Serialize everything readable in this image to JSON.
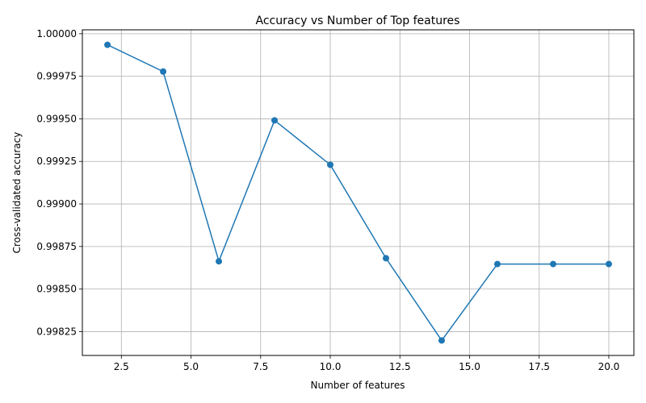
{
  "chart_data": {
    "type": "line",
    "title": "Accuracy vs Number of Top features",
    "xlabel": "Number of features",
    "ylabel": "Cross-validated accuracy",
    "xlim": [
      1.1,
      20.9
    ],
    "ylim": [
      0.99811,
      1.000023
    ],
    "grid": true,
    "xticks": [
      2.5,
      5.0,
      7.5,
      10.0,
      12.5,
      15.0,
      17.5,
      20.0
    ],
    "xtick_labels": [
      "2.5",
      "5.0",
      "7.5",
      "10.0",
      "12.5",
      "15.0",
      "17.5",
      "20.0"
    ],
    "yticks": [
      0.99825,
      0.9985,
      0.99875,
      0.999,
      0.99925,
      0.9995,
      0.99975,
      1.0
    ],
    "ytick_labels": [
      "0.99825",
      "0.99850",
      "0.99875",
      "0.99900",
      "0.99925",
      "0.99950",
      "0.99975",
      "1.00000"
    ],
    "series": [
      {
        "color": "#1f77b4",
        "marker": "circle",
        "x": [
          2,
          4,
          6,
          8,
          10,
          12,
          14,
          16,
          18,
          20
        ],
        "y": [
          0.999935,
          0.999778,
          0.998663,
          0.999491,
          0.99923,
          0.998681,
          0.998198,
          0.998647,
          0.998647,
          0.998647
        ]
      }
    ]
  }
}
